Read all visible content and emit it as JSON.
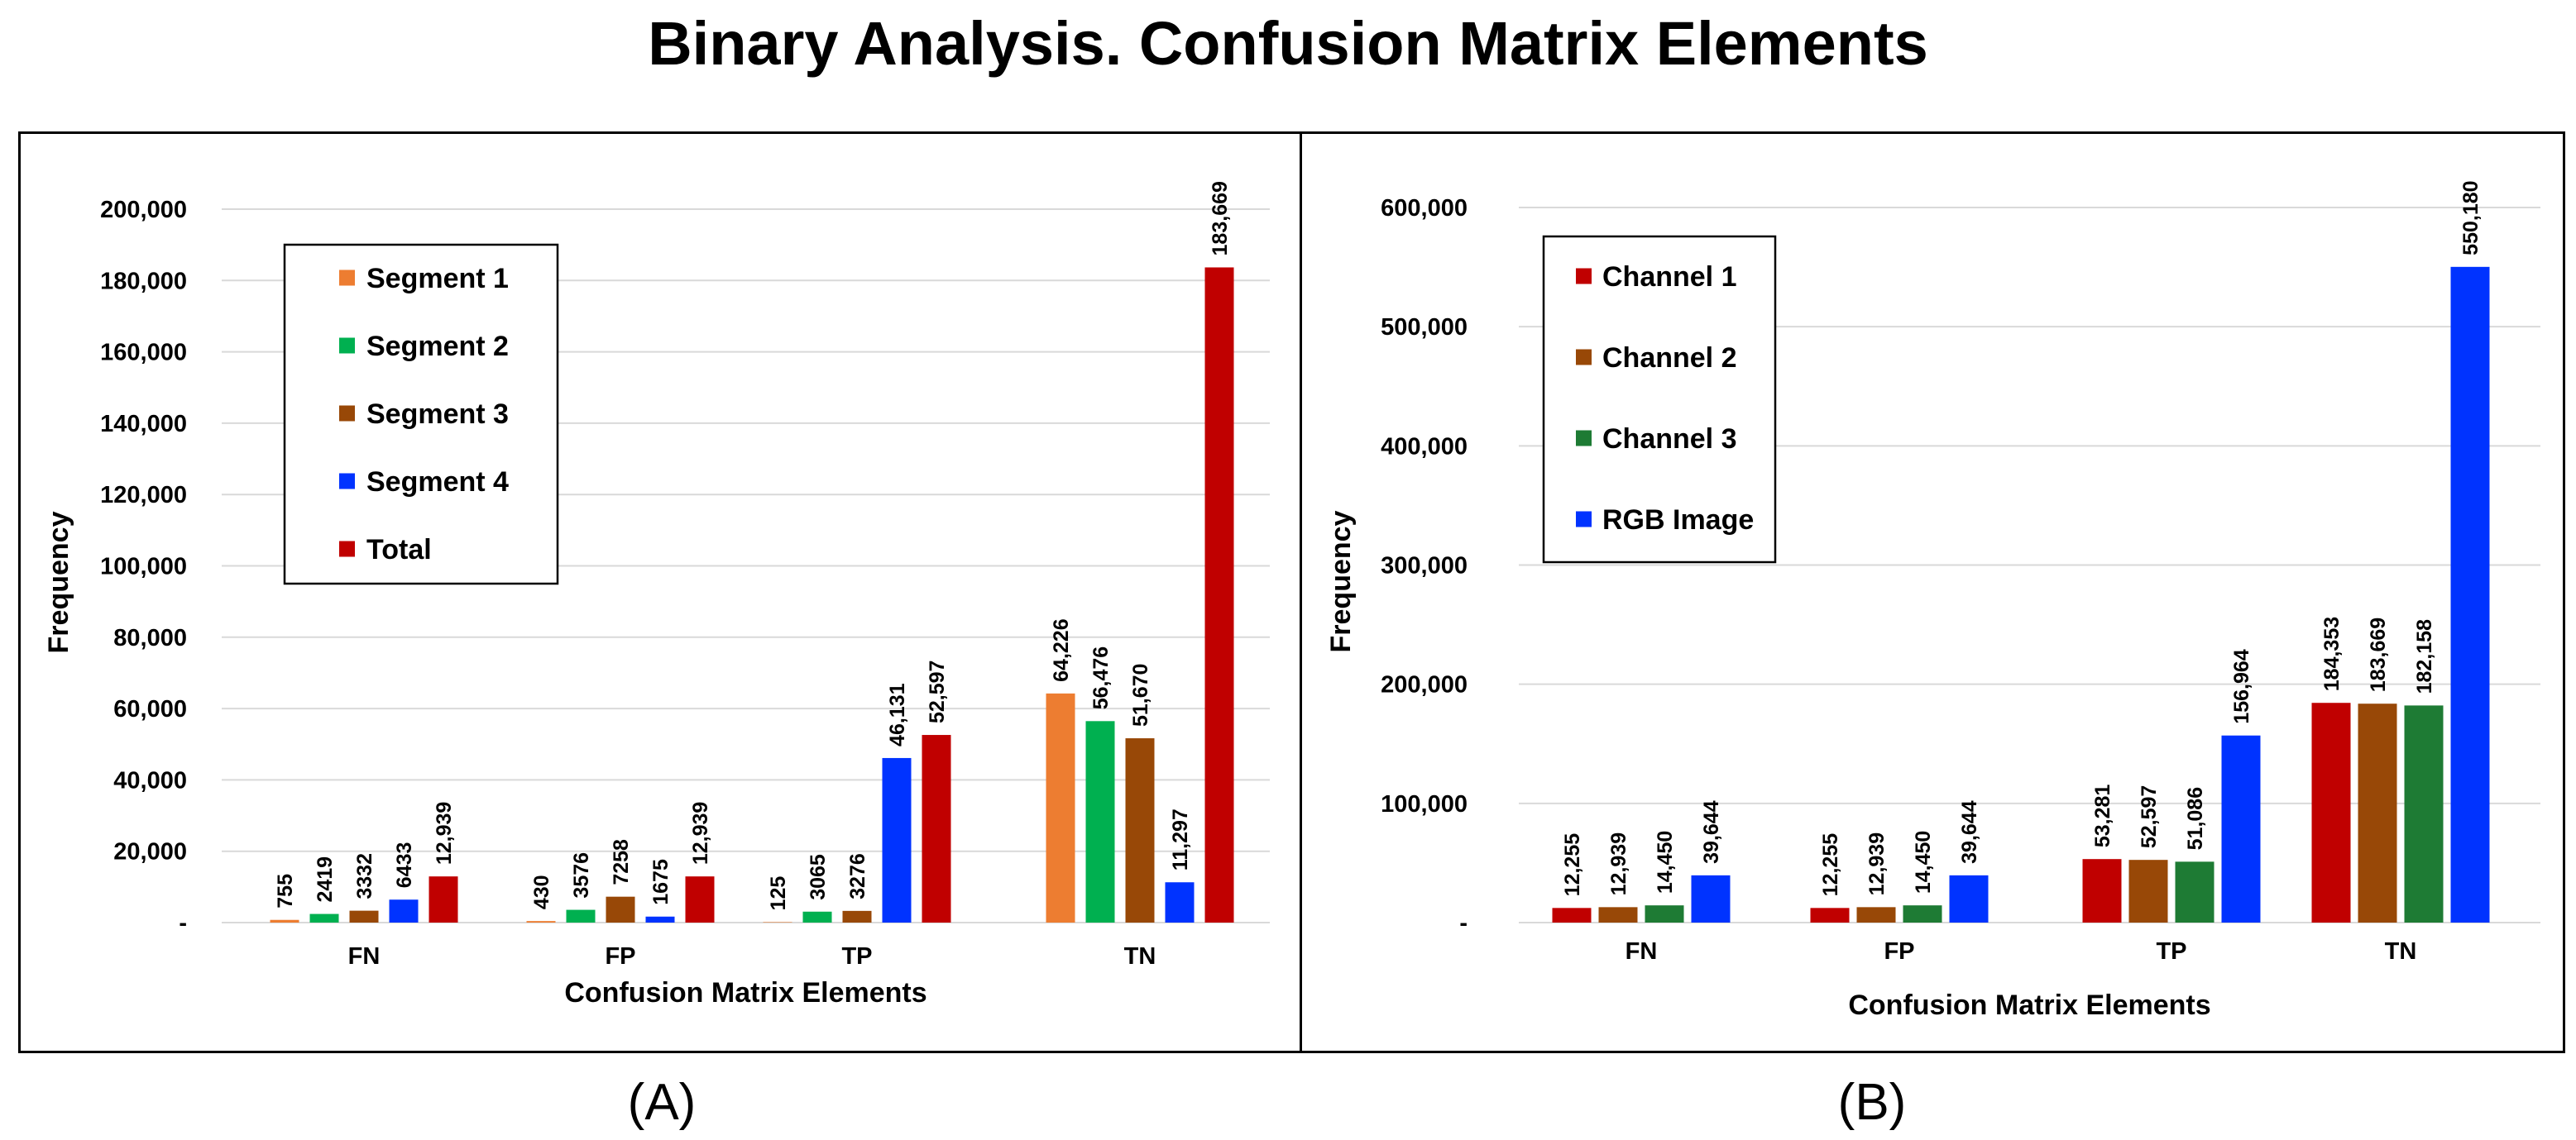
{
  "title": "Binary Analysis. Confusion Matrix Elements",
  "panel_labels": [
    "(A)",
    "(B)"
  ],
  "colors": {
    "segment_1": "#ED7D31",
    "segment_2": "#00B050",
    "segment_3": "#984807",
    "segment_4": "#0033FF",
    "total": "#C00000",
    "channel_1": "#C00000",
    "channel_2": "#984807",
    "channel_3": "#1E7B34",
    "rgb_image": "#0033FF",
    "grid": "#d9d9d9"
  },
  "chart_data": [
    {
      "type": "bar",
      "panel": "(A)",
      "title": "",
      "xlabel": "Confusion Matrix Elements",
      "ylabel": "Frequency",
      "ylim": [
        0,
        200000
      ],
      "yticks": [
        0,
        20000,
        40000,
        60000,
        80000,
        100000,
        120000,
        140000,
        160000,
        180000,
        200000
      ],
      "ytick_labels": [
        "-",
        "20,000",
        "40,000",
        "60,000",
        "80,000",
        "100,000",
        "120,000",
        "140,000",
        "160,000",
        "180,000",
        "200,000"
      ],
      "grid": true,
      "legend_position": "top-left",
      "categories": [
        "FN",
        "FP",
        "TP",
        "TN"
      ],
      "series": [
        {
          "name": "Segment 1",
          "color": "#ED7D31",
          "values": [
            755,
            430,
            125,
            64226
          ],
          "labels": [
            "755",
            "430",
            "125",
            "64,226"
          ]
        },
        {
          "name": "Segment 2",
          "color": "#00B050",
          "values": [
            2419,
            3576,
            3065,
            56476
          ],
          "labels": [
            "2419",
            "3576",
            "3065",
            "56,476"
          ]
        },
        {
          "name": "Segment 3",
          "color": "#984807",
          "values": [
            3332,
            7258,
            3276,
            51670
          ],
          "labels": [
            "3332",
            "7258",
            "3276",
            "51,670"
          ]
        },
        {
          "name": "Segment 4",
          "color": "#0033FF",
          "values": [
            6433,
            1675,
            46131,
            11297
          ],
          "labels": [
            "6433",
            "1675",
            "46,131",
            "11,297"
          ]
        },
        {
          "name": "Total",
          "color": "#C00000",
          "values": [
            12939,
            12939,
            52597,
            183669
          ],
          "labels": [
            "12,939",
            "12,939",
            "52,597",
            "183,669"
          ],
          "label_colors": [
            "#C00000",
            "#C00000",
            "#000000",
            "#000000"
          ],
          "legend_text_color": "#C00000"
        }
      ]
    },
    {
      "type": "bar",
      "panel": "(B)",
      "title": "",
      "xlabel": "Confusion Matrix Elements",
      "ylabel": "Frequency",
      "ylim": [
        0,
        600000
      ],
      "yticks": [
        0,
        100000,
        200000,
        300000,
        400000,
        500000,
        600000
      ],
      "ytick_labels": [
        "-",
        "100,000",
        "200,000",
        "300,000",
        "400,000",
        "500,000",
        "600,000"
      ],
      "grid": true,
      "legend_position": "top-left",
      "categories": [
        "FN",
        "FP",
        "TP",
        "TN"
      ],
      "series": [
        {
          "name": "Channel 1",
          "color": "#C00000",
          "values": [
            12255,
            12255,
            53281,
            184353
          ],
          "labels": [
            "12,255",
            "12,255",
            "53,281",
            "184,353"
          ]
        },
        {
          "name": "Channel 2",
          "color": "#984807",
          "values": [
            12939,
            12939,
            52597,
            183669
          ],
          "labels": [
            "12,939",
            "12,939",
            "52,597",
            "183,669"
          ]
        },
        {
          "name": "Channel 3",
          "color": "#1E7B34",
          "values": [
            14450,
            14450,
            51086,
            182158
          ],
          "labels": [
            "14,450",
            "14,450",
            "51,086",
            "182,158"
          ]
        },
        {
          "name": "RGB Image",
          "color": "#0033FF",
          "values": [
            39644,
            39644,
            156964,
            550180
          ],
          "labels": [
            "39,644",
            "39,644",
            "156,964",
            "550,180"
          ]
        }
      ]
    }
  ]
}
